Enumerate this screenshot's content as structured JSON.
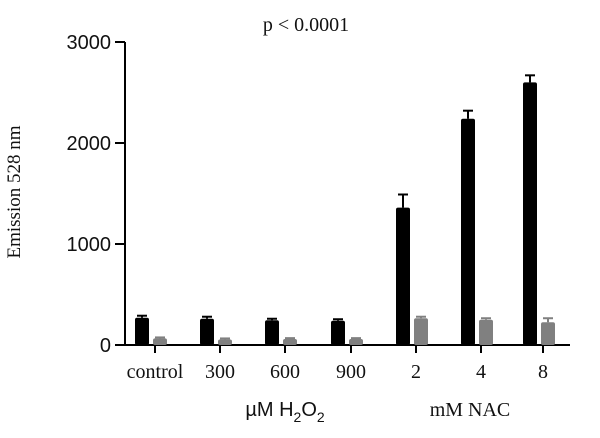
{
  "chart_data": {
    "type": "bar",
    "title": "p < 0.0001",
    "ylabel": "Emission 528 nm",
    "ylim": [
      0,
      3000
    ],
    "yticks": [
      "0",
      "1000",
      "2000",
      "3000"
    ],
    "categories": [
      "control",
      "300",
      "600",
      "900",
      "2",
      "4",
      "8"
    ],
    "series": [
      {
        "color": "#000000",
        "values": [
          270,
          260,
          245,
          240,
          1360,
          2240,
          2600
        ],
        "errors": [
          20,
          20,
          15,
          15,
          130,
          80,
          70
        ]
      },
      {
        "color": "#808080",
        "values": [
          65,
          55,
          60,
          60,
          265,
          250,
          225
        ],
        "errors": [
          10,
          10,
          8,
          8,
          15,
          15,
          40
        ]
      }
    ],
    "group_labels": {
      "h2o2": {
        "prefix": "µM H",
        "sub1": "2",
        "mid": "O",
        "sub2": "2"
      },
      "nac": "mM NAC"
    }
  }
}
